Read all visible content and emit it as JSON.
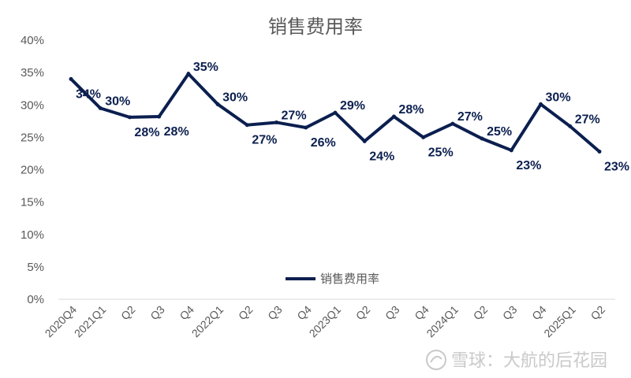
{
  "chart_data": {
    "type": "line",
    "title": "销售费用率",
    "categories": [
      "2020Q4",
      "2021Q1",
      "Q2",
      "Q3",
      "Q4",
      "2022Q1",
      "Q2",
      "Q3",
      "Q4",
      "2023Q1",
      "Q2",
      "Q3",
      "Q4",
      "2024Q1",
      "Q2",
      "Q3",
      "Q4",
      "2025Q1",
      "Q2"
    ],
    "series": [
      {
        "name": "销售费用率",
        "color": "#0b1f4f",
        "values": [
          34,
          29.5,
          28.1,
          28.2,
          34.8,
          30.1,
          26.9,
          27.3,
          26.5,
          28.8,
          24.4,
          28.2,
          25.0,
          27.1,
          24.8,
          23.0,
          30.1,
          26.7,
          22.8
        ],
        "labels": [
          "34%",
          "30%",
          "28%",
          "28%",
          "35%",
          "30%",
          "27%",
          "27%",
          "26%",
          "29%",
          "24%",
          "28%",
          "25%",
          "27%",
          "25%",
          "23%",
          "30%",
          "27%",
          "23%"
        ]
      }
    ],
    "ylim": [
      0,
      40
    ],
    "yticks": [
      "0%",
      "5%",
      "10%",
      "15%",
      "20%",
      "25%",
      "30%",
      "35%",
      "40%"
    ],
    "grid": false,
    "legend": "bottom-center"
  },
  "watermark": "雪球：大航的后花园"
}
